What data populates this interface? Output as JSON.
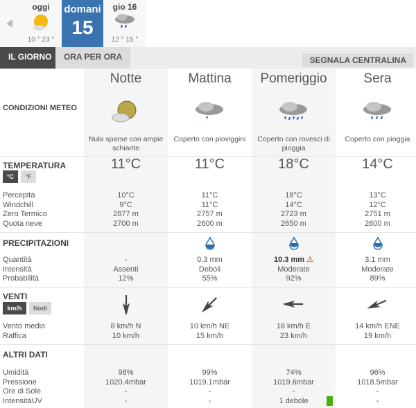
{
  "days": [
    {
      "name": "oggi",
      "temps": "10 ° 23 °",
      "icon": "sun-cloud-icon"
    },
    {
      "name": "domani",
      "number": "15",
      "active": true
    },
    {
      "name": "gio 16",
      "temps": "12 ° 15 °",
      "icon": "rain-cloud-icon"
    }
  ],
  "tabs": {
    "day": "IL GIORNO",
    "hourly": "ORA PER ORA",
    "report": "SEGNALA CENTRALINA"
  },
  "sections": {
    "conditions": "CONDIZIONI METEO",
    "temperature": "TEMPERATURA",
    "precip": "PRECIPITAZIONI",
    "wind": "VENTI",
    "other": "ALTRI DATI"
  },
  "units": {
    "c": "°C",
    "f": "°F",
    "kmh": "km/h",
    "knots": "Nodi"
  },
  "labels": {
    "temp": [
      "Percepita",
      "Windchill",
      "Zero Termico",
      "Quota neve"
    ],
    "precip": [
      "Quantità",
      "Intensità",
      "Probabilità"
    ],
    "wind": [
      "Vento medio",
      "Raffica"
    ],
    "other": [
      "Umidità",
      "Pressione",
      "Ore di Sole",
      "IntensitàUV"
    ]
  },
  "periods": [
    {
      "name": "Notte",
      "desc": "Nubi sparse con ampie schiarite",
      "icon": "moon-cloud-icon",
      "temp": "11°C",
      "perc": "10°C",
      "windchill": "9°C",
      "zero": "2877 m",
      "snow": "2700 m",
      "qty": "-",
      "intensity": "Assenti",
      "prob": "12%",
      "drop": "none",
      "wind": "8 km/h  N",
      "wind_dir_deg": 0,
      "gust": "10 km/h",
      "hum": "98%",
      "press": "1020.4mbar",
      "sun": "-",
      "uv": "-"
    },
    {
      "name": "Mattina",
      "desc": "Coperto con pioviggini",
      "icon": "drizzle-cloud-icon",
      "temp": "11°C",
      "perc": "11°C",
      "windchill": "11°C",
      "zero": "2757 m",
      "snow": "2600 m",
      "qty": "0.3 mm",
      "intensity": "Deboli",
      "prob": "55%",
      "drop": "low",
      "wind": "10 km/h NE",
      "wind_dir_deg": 45,
      "gust": "15 km/h",
      "hum": "99%",
      "press": "1019.1mbar",
      "sun": "-",
      "uv": "-"
    },
    {
      "name": "Pomeriggio",
      "desc": "Coperto con rovesci di pioggia",
      "icon": "heavy-rain-cloud-icon",
      "temp": "18°C",
      "perc": "18°C",
      "windchill": "14°C",
      "zero": "2723 m",
      "snow": "2650 m",
      "qty": "10.3 mm",
      "qty_warning": true,
      "intensity": "Moderate",
      "prob": "92%",
      "drop": "high",
      "wind": "18 km/h E",
      "wind_dir_deg": 90,
      "gust": "23 km/h",
      "hum": "74%",
      "press": "1019.6mbar",
      "sun": "-",
      "uv": "1 debole",
      "uv_color": "#4caf10"
    },
    {
      "name": "Sera",
      "desc": "Coperto con pioggia",
      "icon": "rain-cloud-icon",
      "temp": "14°C",
      "perc": "13°C",
      "windchill": "12°C",
      "zero": "2751 m",
      "snow": "2600 m",
      "qty": "3.1 mm",
      "intensity": "Moderate",
      "prob": "89%",
      "drop": "high",
      "wind": "14 km/h ENE",
      "wind_dir_deg": 67,
      "gust": "19 km/h",
      "hum": "96%",
      "press": "1018.5mbar",
      "sun": "-",
      "uv": "-"
    }
  ],
  "colors": {
    "accent": "#3a74b0",
    "warning": "#e02020",
    "drop": "#2e6db0"
  }
}
